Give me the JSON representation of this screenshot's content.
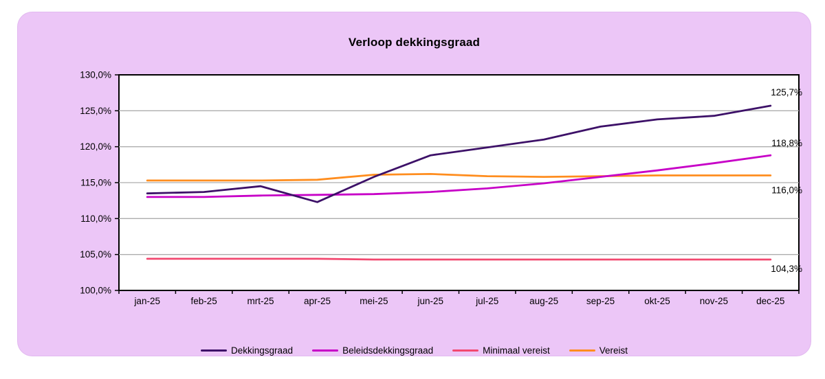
{
  "chart_data": {
    "type": "line",
    "title": "Verloop dekkingsgraad",
    "categories": [
      "jan-25",
      "feb-25",
      "mrt-25",
      "apr-25",
      "mei-25",
      "jun-25",
      "jul-25",
      "aug-25",
      "sep-25",
      "okt-25",
      "nov-25",
      "dec-25"
    ],
    "y_ticks": [
      "100,0%",
      "105,0%",
      "110,0%",
      "115,0%",
      "120,0%",
      "125,0%",
      "130,0%"
    ],
    "ylim": [
      100,
      130
    ],
    "y_step": 5,
    "grid": "horizontal-only",
    "legend_position": "bottom-center",
    "series": [
      {
        "name": "Dekkingsgraad",
        "color": "#3D1168",
        "values": [
          113.5,
          113.7,
          114.5,
          112.3,
          115.8,
          118.8,
          119.9,
          121.0,
          122.8,
          123.8,
          124.3,
          125.7
        ],
        "end_label": "125,7%",
        "label_dy": -15
      },
      {
        "name": "Beleidsdekkingsgraad",
        "color": "#C701C7",
        "values": [
          113.0,
          113.0,
          113.2,
          113.3,
          113.4,
          113.7,
          114.2,
          114.9,
          115.8,
          116.7,
          117.7,
          118.8
        ],
        "end_label": "118,8%",
        "label_dy": -13
      },
      {
        "name": "Minimaal vereist",
        "color": "#F2486F",
        "values": [
          104.4,
          104.4,
          104.4,
          104.4,
          104.3,
          104.3,
          104.3,
          104.3,
          104.3,
          104.3,
          104.3,
          104.3
        ],
        "end_label": "104,3%",
        "label_dy": 18
      },
      {
        "name": "Vereist",
        "color": "#FF8D1E",
        "values": [
          115.3,
          115.3,
          115.3,
          115.4,
          116.1,
          116.2,
          115.9,
          115.8,
          115.9,
          116.0,
          116.0,
          116.0
        ],
        "end_label": "116,0%",
        "label_dy": 26
      }
    ],
    "colors": {
      "panel_bg": "#ECC6F7",
      "plot_bg": "#FFFFFF",
      "grid": "#ADADAD",
      "axis": "#000000",
      "text": "#000000"
    }
  }
}
